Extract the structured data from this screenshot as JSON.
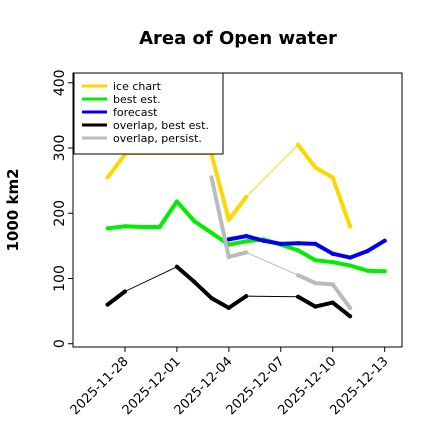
{
  "chart_data": {
    "type": "line",
    "title": "Area of Open water",
    "ylabel": "1000 km2",
    "ylim": [
      -5,
      415
    ],
    "xlim": [
      "2025-11-25",
      "2025-12-14"
    ],
    "x_ticks": [
      "2025-11-28",
      "2025-12-01",
      "2025-12-04",
      "2025-12-07",
      "2025-12-10",
      "2025-12-13"
    ],
    "highlight_tick": "2025-12-04",
    "highlight_color": "#228B22",
    "y_ticks": [
      "0",
      "100",
      "200",
      "300",
      "400"
    ],
    "legend_position": "top-left",
    "grid": false,
    "series": [
      {
        "name": "ice chart",
        "color": "#FFD700",
        "x": [
          "2025-11-27",
          "2025-11-28",
          "2025-12-03",
          "2025-12-04",
          "2025-12-05",
          "2025-12-08",
          "2025-12-09",
          "2025-12-10",
          "2025-12-11"
        ],
        "y": [
          255,
          290,
          290,
          190,
          225,
          305,
          270,
          255,
          180
        ]
      },
      {
        "name": "best est.",
        "color": "#00EE00",
        "x": [
          "2025-11-27",
          "2025-11-28",
          "2025-11-29",
          "2025-11-30",
          "2025-12-01",
          "2025-12-02",
          "2025-12-03",
          "2025-12-04",
          "2025-12-05",
          "2025-12-06",
          "2025-12-07",
          "2025-12-08",
          "2025-12-09",
          "2025-12-10",
          "2025-12-11",
          "2025-12-12",
          "2025-12-13"
        ],
        "y": [
          177,
          180,
          179,
          179,
          218,
          188,
          170,
          152,
          157,
          160,
          152,
          143,
          128,
          125,
          120,
          112,
          111
        ]
      },
      {
        "name": "forecast",
        "color": "#0000EE",
        "x": [
          "2025-12-04",
          "2025-12-05",
          "2025-12-06",
          "2025-12-07",
          "2025-12-08",
          "2025-12-09",
          "2025-12-10",
          "2025-12-11",
          "2025-12-12",
          "2025-12-13"
        ],
        "y": [
          160,
          165,
          158,
          153,
          154,
          153,
          138,
          132,
          142,
          158
        ]
      },
      {
        "name": "overlap, best est.",
        "color": "#000000",
        "x": [
          "2025-11-27",
          "2025-11-28",
          "2025-12-01",
          "2025-12-02",
          "2025-12-03",
          "2025-12-04",
          "2025-12-05",
          "2025-12-08",
          "2025-12-09",
          "2025-12-10",
          "2025-12-11"
        ],
        "y": [
          60,
          80,
          118,
          95,
          70,
          55,
          73,
          72,
          57,
          63,
          42
        ]
      },
      {
        "name": "overlap, persist.",
        "color": "#BBBBBB",
        "x": [
          "2025-12-03",
          "2025-12-04",
          "2025-12-05",
          "2025-12-08",
          "2025-12-09",
          "2025-12-10",
          "2025-12-11"
        ],
        "y": [
          255,
          133,
          140,
          105,
          93,
          91,
          55
        ]
      }
    ]
  }
}
